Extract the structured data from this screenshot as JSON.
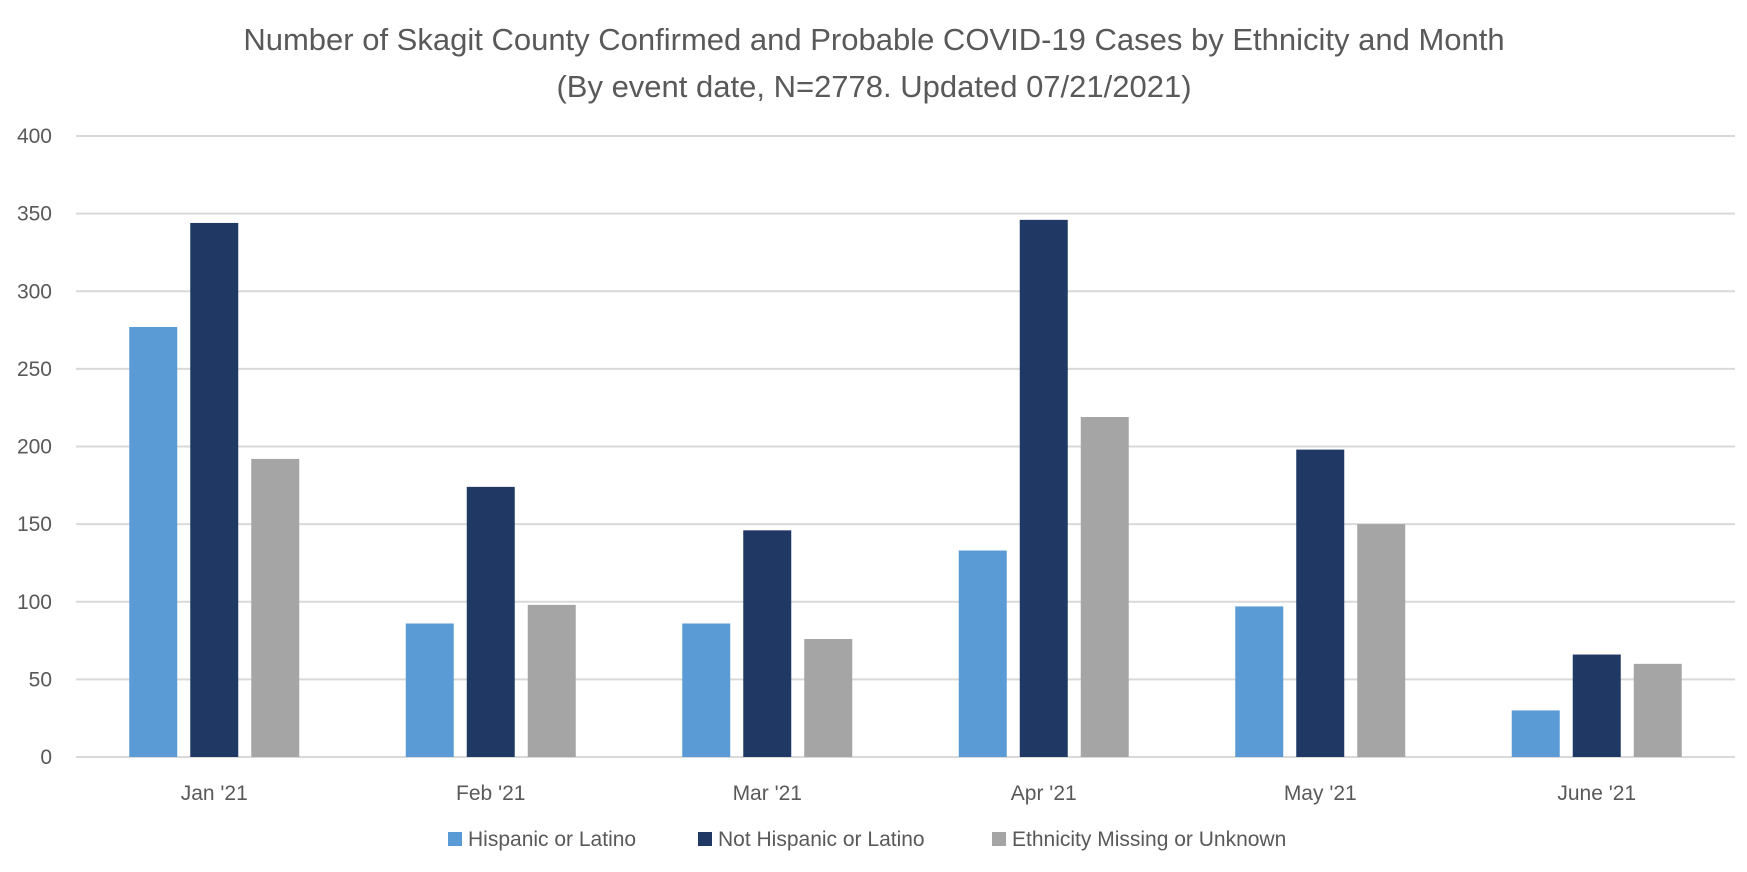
{
  "chart_data": {
    "type": "bar",
    "title": "Number of Skagit County Confirmed and Probable COVID-19 Cases by Ethnicity and Month",
    "subtitle": "(By event date, N=2778. Updated 07/21/2021)",
    "xlabel": "",
    "ylabel": "",
    "ylim": [
      0,
      400
    ],
    "yticks": [
      0,
      50,
      100,
      150,
      200,
      250,
      300,
      350,
      400
    ],
    "grid": true,
    "legend_position": "bottom",
    "categories": [
      "Jan '21",
      "Feb '21",
      "Mar '21",
      "Apr '21",
      "May '21",
      "June '21"
    ],
    "series": [
      {
        "name": "Hispanic or Latino",
        "color": "#5b9bd5",
        "values": [
          277,
          86,
          86,
          133,
          97,
          30
        ]
      },
      {
        "name": "Not Hispanic or Latino",
        "color": "#203864",
        "values": [
          344,
          174,
          146,
          346,
          198,
          66
        ]
      },
      {
        "name": "Ethnicity Missing or Unknown",
        "color": "#a5a5a5",
        "values": [
          192,
          98,
          76,
          219,
          150,
          60
        ]
      }
    ]
  }
}
